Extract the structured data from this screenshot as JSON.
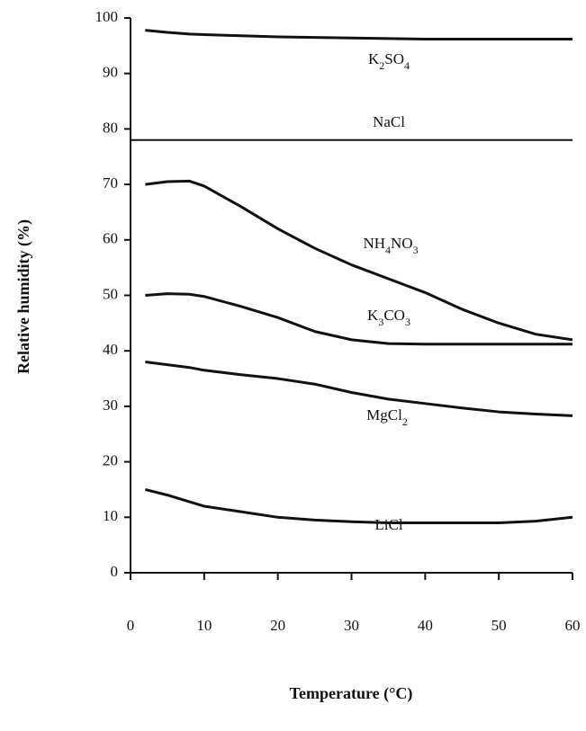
{
  "chart_data": {
    "type": "line",
    "xlabel": "Temperature (°C)",
    "ylabel": "Relative humidity (%)",
    "x": [
      0,
      2,
      5,
      8,
      10,
      15,
      20,
      25,
      30,
      35,
      40,
      45,
      50,
      55,
      60
    ],
    "series": [
      {
        "name": "K2SO4",
        "color": "#111111",
        "values": [
          null,
          97.8,
          97.4,
          97.1,
          97,
          96.8,
          96.6,
          96.5,
          96.4,
          96.3,
          96.2,
          96.2,
          96.2,
          96.2,
          96.2
        ]
      },
      {
        "name": "NaCl",
        "color": "#111111",
        "values": [
          78,
          78,
          78,
          78,
          78,
          78,
          78,
          78,
          78,
          78,
          78,
          78,
          78,
          78,
          78
        ]
      },
      {
        "name": "NH4NO3",
        "color": "#111111",
        "values": [
          null,
          70,
          70.5,
          70.6,
          69.7,
          66,
          62,
          58.5,
          55.5,
          53,
          50.5,
          47.5,
          45,
          43,
          42
        ]
      },
      {
        "name": "K3CO3",
        "color": "#111111",
        "values": [
          null,
          50,
          50.3,
          50.2,
          49.8,
          48,
          46,
          43.5,
          42,
          41.3,
          41.2,
          41.2,
          41.2,
          41.2,
          41.2
        ]
      },
      {
        "name": "MgCl2",
        "color": "#111111",
        "values": [
          null,
          38,
          37.5,
          37,
          36.5,
          35.7,
          35,
          34,
          32.5,
          31.3,
          30.5,
          29.7,
          29,
          28.6,
          28.3
        ]
      },
      {
        "name": "LiCl",
        "color": "#111111",
        "values": [
          null,
          15,
          14,
          12.8,
          12,
          11,
          10,
          9.5,
          9.2,
          9,
          9,
          9,
          9,
          9.3,
          10
        ]
      }
    ],
    "xlim": [
      0,
      60
    ],
    "xticks": [
      0,
      10,
      20,
      30,
      40,
      50,
      60
    ],
    "ylim": [
      0,
      100
    ],
    "yticks": [
      0,
      10,
      20,
      30,
      40,
      50,
      60,
      70,
      80,
      90,
      100
    ],
    "grid": false
  }
}
